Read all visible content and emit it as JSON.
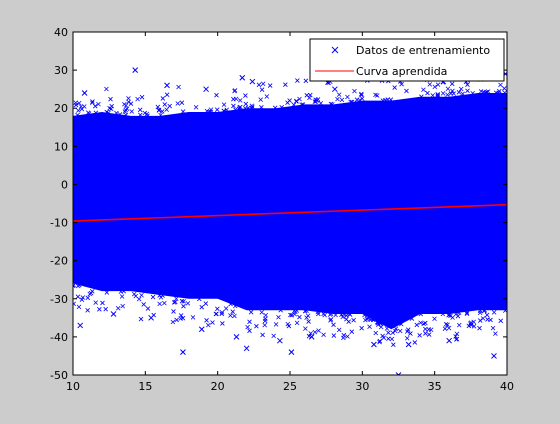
{
  "chart_data": {
    "type": "scatter",
    "title": "",
    "xlabel": "",
    "ylabel": "",
    "xlim": [
      10,
      40
    ],
    "ylim": [
      -50,
      40
    ],
    "x_ticks": [
      "10",
      "15",
      "20",
      "25",
      "30",
      "35",
      "40"
    ],
    "y_ticks": [
      "40",
      "30",
      "20",
      "10",
      "0",
      "-10",
      "-20",
      "-30",
      "-40",
      "-50"
    ],
    "grid": false,
    "legend_position": "top-right",
    "series": [
      {
        "name": "Datos de entrenamiento",
        "style": "x-markers",
        "color": "#0000ff",
        "band_upper": [
          {
            "x": 10,
            "y": 18
          },
          {
            "x": 12,
            "y": 19
          },
          {
            "x": 14,
            "y": 18
          },
          {
            "x": 16,
            "y": 18
          },
          {
            "x": 18,
            "y": 19
          },
          {
            "x": 20,
            "y": 19
          },
          {
            "x": 22,
            "y": 20
          },
          {
            "x": 24,
            "y": 20
          },
          {
            "x": 26,
            "y": 21
          },
          {
            "x": 28,
            "y": 21
          },
          {
            "x": 30,
            "y": 22
          },
          {
            "x": 32,
            "y": 22
          },
          {
            "x": 34,
            "y": 23
          },
          {
            "x": 36,
            "y": 23
          },
          {
            "x": 38,
            "y": 24
          },
          {
            "x": 40,
            "y": 24
          }
        ],
        "band_lower": [
          {
            "x": 10,
            "y": -26
          },
          {
            "x": 12,
            "y": -28
          },
          {
            "x": 14,
            "y": -28
          },
          {
            "x": 16,
            "y": -29
          },
          {
            "x": 18,
            "y": -30
          },
          {
            "x": 20,
            "y": -30
          },
          {
            "x": 22,
            "y": -33
          },
          {
            "x": 24,
            "y": -33
          },
          {
            "x": 26,
            "y": -33
          },
          {
            "x": 28,
            "y": -34
          },
          {
            "x": 30,
            "y": -34
          },
          {
            "x": 32,
            "y": -38
          },
          {
            "x": 34,
            "y": -34
          },
          {
            "x": 36,
            "y": -34
          },
          {
            "x": 38,
            "y": -33
          },
          {
            "x": 40,
            "y": -33
          }
        ],
        "outliers": [
          {
            "x": 14.3,
            "y": 30
          },
          {
            "x": 21.7,
            "y": 28
          },
          {
            "x": 22.4,
            "y": 27
          },
          {
            "x": 39.9,
            "y": 29
          },
          {
            "x": 10.8,
            "y": 24
          },
          {
            "x": 16.5,
            "y": 26
          },
          {
            "x": 19.2,
            "y": 25
          },
          {
            "x": 28.1,
            "y": 25
          },
          {
            "x": 35.6,
            "y": 27
          },
          {
            "x": 10.5,
            "y": -37
          },
          {
            "x": 17.6,
            "y": -44
          },
          {
            "x": 22.0,
            "y": -43
          },
          {
            "x": 24.3,
            "y": -41
          },
          {
            "x": 25.1,
            "y": -44
          },
          {
            "x": 32.5,
            "y": -50
          },
          {
            "x": 39.1,
            "y": -45
          },
          {
            "x": 30.8,
            "y": -42
          },
          {
            "x": 33.2,
            "y": -42
          },
          {
            "x": 21.3,
            "y": -40
          },
          {
            "x": 26.5,
            "y": -40
          },
          {
            "x": 18.9,
            "y": -38
          },
          {
            "x": 36.0,
            "y": -41
          },
          {
            "x": 12.8,
            "y": -34
          },
          {
            "x": 15.4,
            "y": -35
          }
        ]
      },
      {
        "name": "Curva aprendida",
        "style": "line",
        "color": "#ff0000",
        "points": [
          {
            "x": 10,
            "y": -9.6
          },
          {
            "x": 40,
            "y": -5.3
          }
        ]
      }
    ]
  }
}
